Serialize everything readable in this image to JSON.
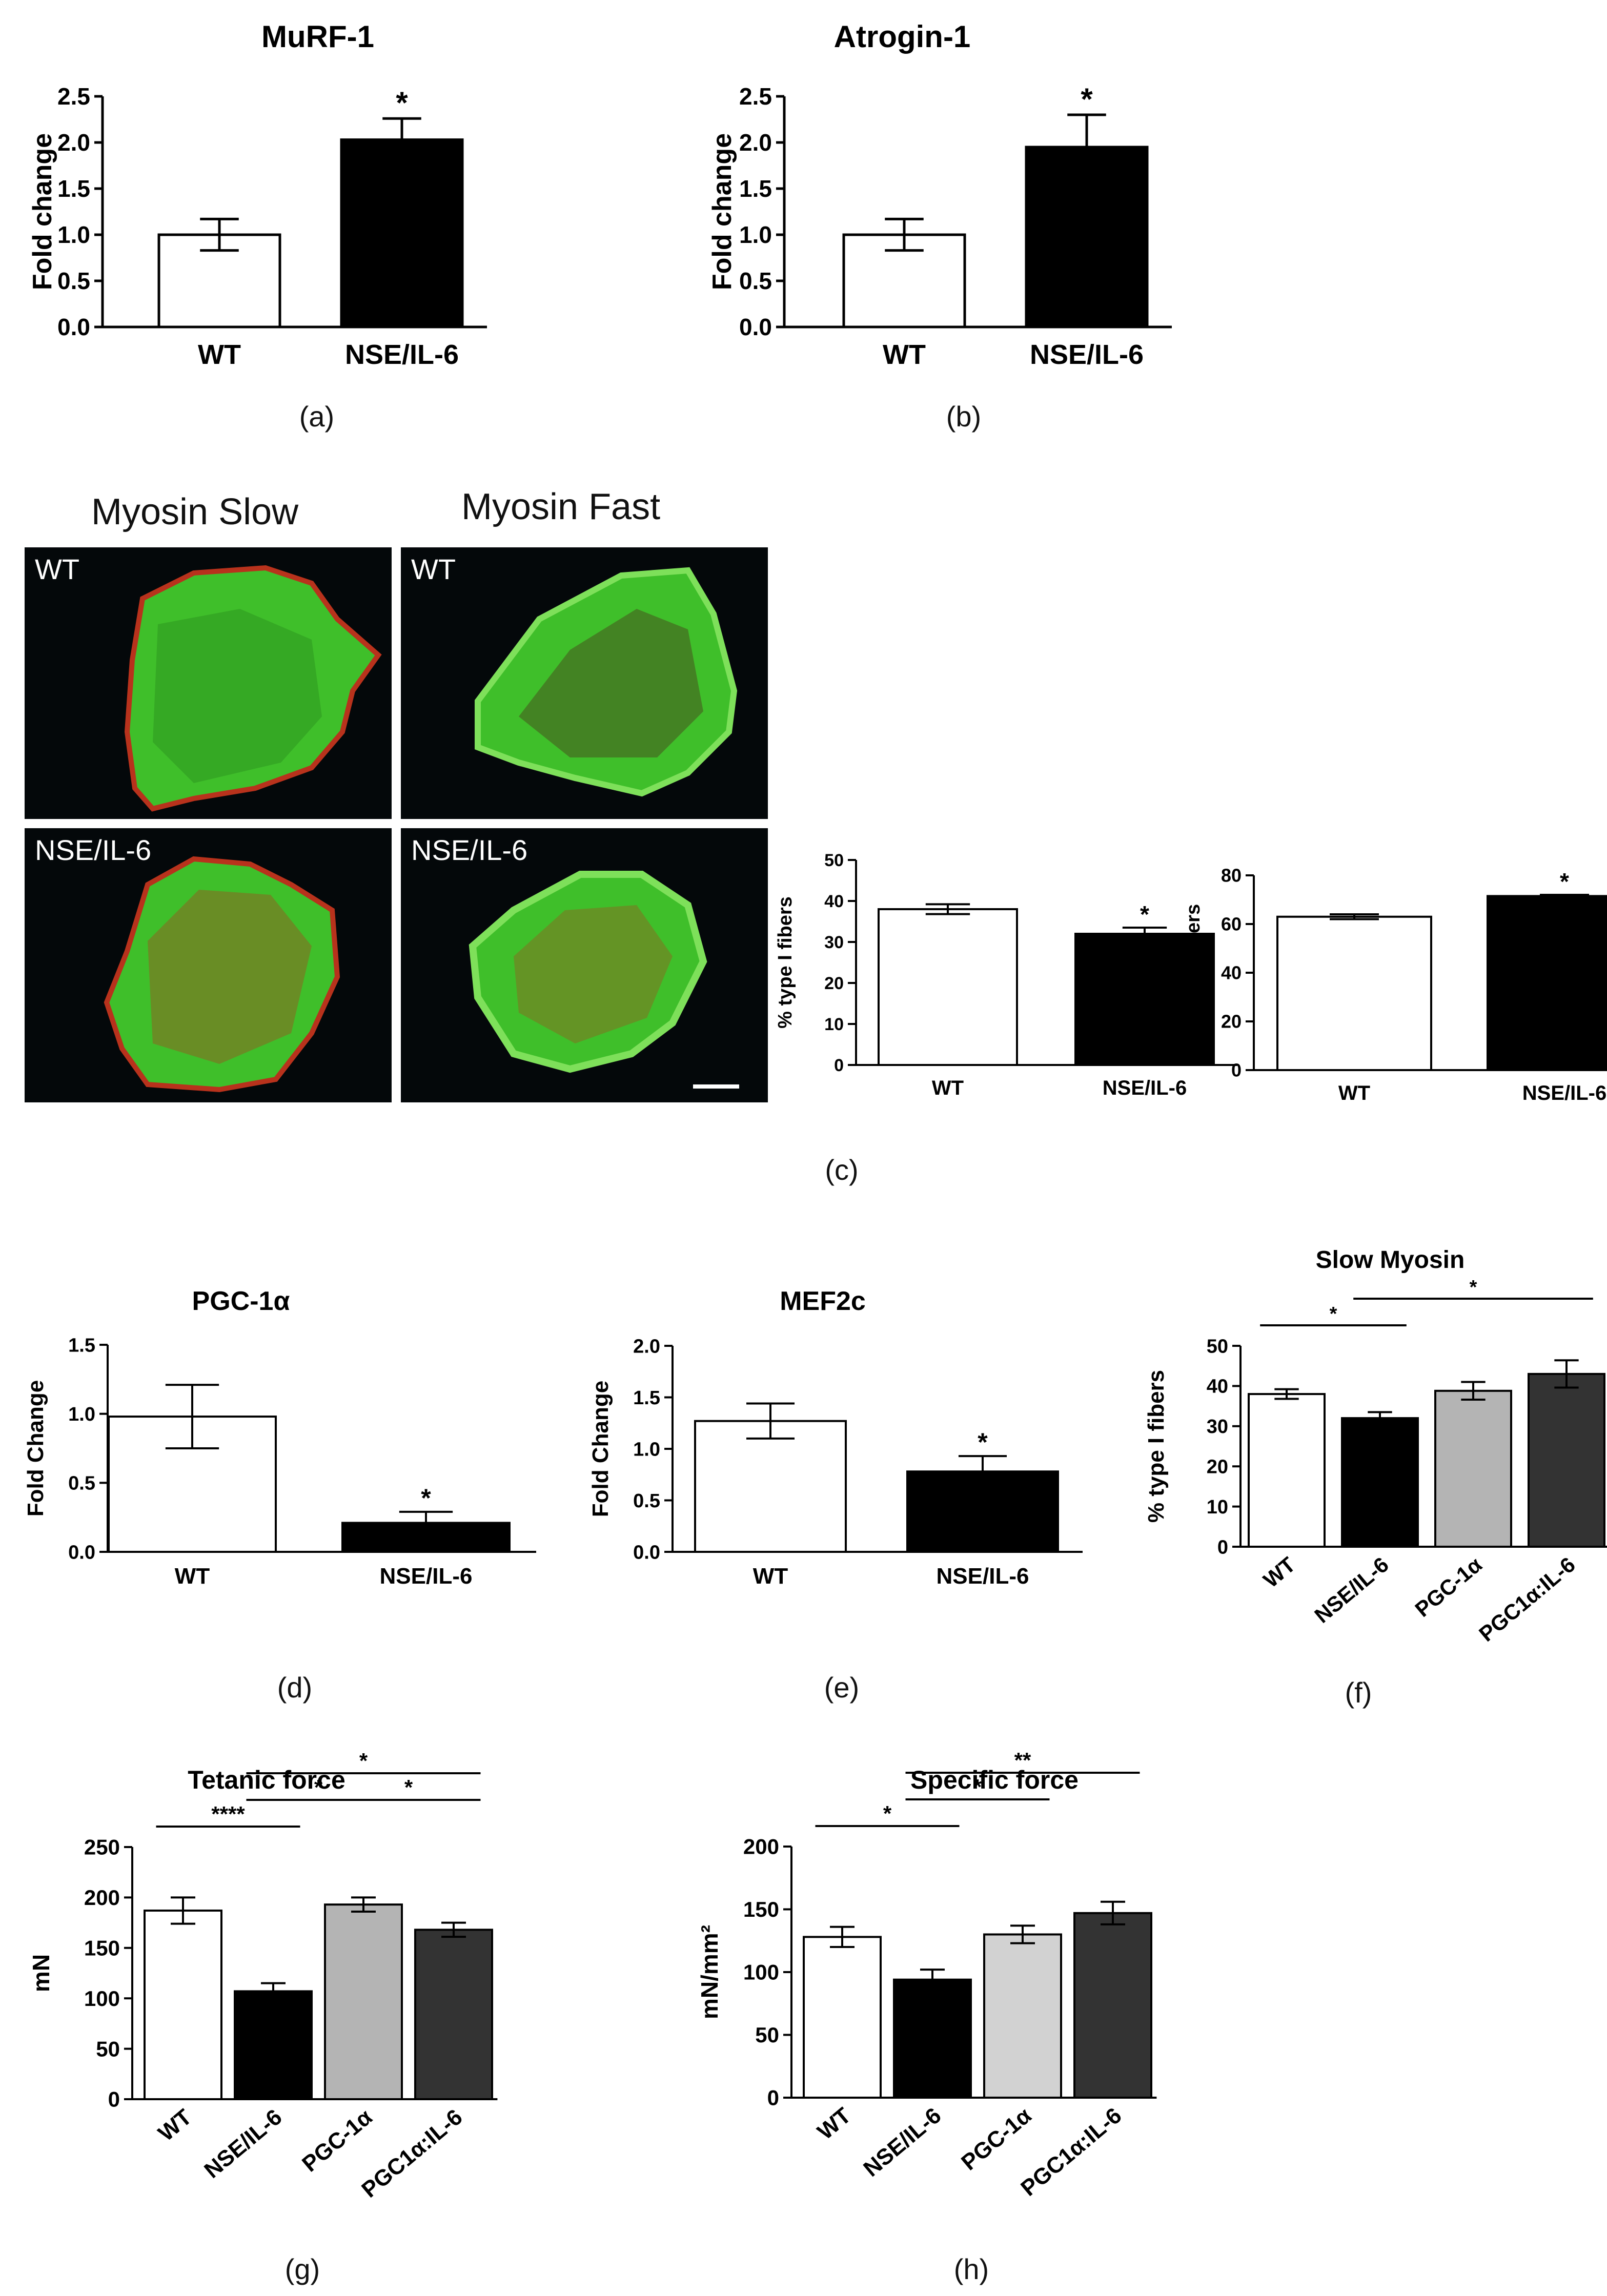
{
  "colors": {
    "wt": "#ffffff",
    "nse": "#000000",
    "pgc_light": "#b4b4b4",
    "pgc_combo": "#333333",
    "specific_pgc": "#d2d2d2",
    "tissue_green": "#3fbf2a",
    "tissue_red": "#b8321c"
  },
  "captions": {
    "a": "(a)",
    "b": "(b)",
    "c": "(c)",
    "d": "(d)",
    "e": "(e)",
    "f": "(f)",
    "g": "(g)",
    "h": "(h)"
  },
  "micrographs": {
    "col_titles": [
      "Myosin Slow",
      "Myosin Fast"
    ],
    "panels": [
      {
        "label": "WT",
        "stain": "slow"
      },
      {
        "label": "WT",
        "stain": "fast"
      },
      {
        "label": "NSE/IL-6",
        "stain": "slow"
      },
      {
        "label": "NSE/IL-6",
        "stain": "fast"
      }
    ]
  },
  "chart_data": [
    {
      "id": "murf1",
      "type": "bar",
      "title": "MuRF-1",
      "ylabel": "Fold change",
      "ylim": [
        0,
        2.5
      ],
      "yticks": [
        "0.0",
        "0.5",
        "1.0",
        "1.5",
        "2.0",
        "2.5"
      ],
      "categories": [
        "WT",
        "NSE/IL-6"
      ],
      "values": [
        1.0,
        2.03
      ],
      "errors": [
        0.17,
        0.23
      ],
      "annotations": [
        {
          "bar": 1,
          "text": "*"
        }
      ]
    },
    {
      "id": "atrogin1",
      "type": "bar",
      "title": "Atrogin-1",
      "ylabel": "Fold change",
      "ylim": [
        0,
        2.5
      ],
      "yticks": [
        "0.0",
        "0.5",
        "1.0",
        "1.5",
        "2.0",
        "2.5"
      ],
      "categories": [
        "WT",
        "NSE/IL-6"
      ],
      "values": [
        1.0,
        1.95
      ],
      "errors": [
        0.17,
        0.35
      ],
      "annotations": [
        {
          "bar": 1,
          "text": "*"
        }
      ]
    },
    {
      "id": "type1",
      "type": "bar",
      "title": "",
      "ylabel": "% type I fibers",
      "ylim": [
        0,
        50
      ],
      "yticks": [
        "0",
        "10",
        "20",
        "30",
        "40",
        "50"
      ],
      "categories": [
        "WT",
        "NSE/IL-6"
      ],
      "values": [
        38,
        32
      ],
      "errors": [
        1.2,
        1.5
      ],
      "annotations": [
        {
          "bar": 1,
          "text": "*"
        }
      ]
    },
    {
      "id": "type2",
      "type": "bar",
      "title": "",
      "ylabel": "% type II fibers",
      "ylim": [
        0,
        80
      ],
      "yticks": [
        "0",
        "20",
        "40",
        "60",
        "80"
      ],
      "categories": [
        "WT",
        "NSE/IL-6"
      ],
      "values": [
        63,
        71.5
      ],
      "errors": [
        1.0,
        0.5
      ],
      "annotations": [
        {
          "bar": 1,
          "text": "*"
        }
      ]
    },
    {
      "id": "pgc1a",
      "type": "bar",
      "title": "PGC-1α",
      "ylabel": "Fold Change",
      "ylim": [
        0,
        1.5
      ],
      "yticks": [
        "0.0",
        "0.5",
        "1.0",
        "1.5"
      ],
      "categories": [
        "WT",
        "NSE/IL-6"
      ],
      "values": [
        0.98,
        0.21
      ],
      "errors": [
        0.23,
        0.08
      ],
      "annotations": [
        {
          "bar": 1,
          "text": "*"
        }
      ]
    },
    {
      "id": "mef2c",
      "type": "bar",
      "title": "MEF2c",
      "ylabel": "Fold Change",
      "ylim": [
        0,
        2.0
      ],
      "yticks": [
        "0.0",
        "0.5",
        "1.0",
        "1.5",
        "2.0"
      ],
      "categories": [
        "WT",
        "NSE/IL-6"
      ],
      "values": [
        1.27,
        0.78
      ],
      "errors": [
        0.17,
        0.15
      ],
      "annotations": [
        {
          "bar": 1,
          "text": "*"
        }
      ]
    },
    {
      "id": "slowmyosin",
      "type": "bar",
      "title": "Slow Myosin",
      "ylabel": "% type I fibers",
      "ylim": [
        0,
        50
      ],
      "yticks": [
        "0",
        "10",
        "20",
        "30",
        "40",
        "50"
      ],
      "categories": [
        "WT",
        "NSE/IL-6",
        "PGC-1α",
        "PGC1α:IL-6"
      ],
      "values": [
        38,
        32,
        38.8,
        43
      ],
      "errors": [
        1.2,
        1.5,
        2.2,
        3.4
      ],
      "brackets": [
        {
          "from": 0,
          "to": 1,
          "text": "*",
          "level": 1
        },
        {
          "from": 1,
          "to": 3,
          "text": "*",
          "level": 2
        }
      ]
    },
    {
      "id": "tetanic",
      "type": "bar",
      "title": "Tetanic force",
      "ylabel": "mN",
      "ylim": [
        0,
        250
      ],
      "yticks": [
        "0",
        "50",
        "100",
        "150",
        "200",
        "250"
      ],
      "categories": [
        "WT",
        "NSE/IL-6",
        "PGC-1α",
        "PGC1α:IL-6"
      ],
      "values": [
        187,
        107,
        193,
        168
      ],
      "errors": [
        13,
        8,
        7,
        7
      ],
      "brackets": [
        {
          "from": 0,
          "to": 1,
          "text": "****",
          "level": 1
        },
        {
          "from": 1,
          "to": 2,
          "text": "*",
          "level": 2
        },
        {
          "from": 2,
          "to": 3,
          "text": "*",
          "level": 2
        },
        {
          "from": 1,
          "to": 3,
          "text": "*",
          "level": 3
        }
      ]
    },
    {
      "id": "specific",
      "type": "bar",
      "title": "Specific force",
      "ylabel": "mN/mm²",
      "ylim": [
        0,
        200
      ],
      "yticks": [
        "0",
        "50",
        "100",
        "150",
        "200"
      ],
      "categories": [
        "WT",
        "NSE/IL-6",
        "PGC-1α",
        "PGC1α:IL-6"
      ],
      "values": [
        128,
        94,
        130,
        147
      ],
      "errors": [
        8,
        8,
        7,
        9
      ],
      "brackets": [
        {
          "from": 0,
          "to": 1,
          "text": "*",
          "level": 1
        },
        {
          "from": 1,
          "to": 2,
          "text": "*",
          "level": 2
        },
        {
          "from": 1,
          "to": 3,
          "text": "**",
          "level": 3
        }
      ]
    }
  ]
}
